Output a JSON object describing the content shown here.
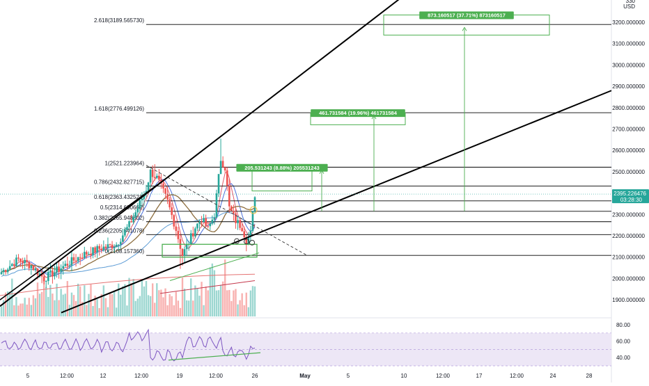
{
  "chart_data": {
    "type": "candlestick",
    "price_axis": {
      "currency_label": "USD",
      "top_partial_label": "330",
      "ticks": [
        {
          "value": 3200,
          "label": "3200.000000"
        },
        {
          "value": 3100,
          "label": "3100.000000"
        },
        {
          "value": 3000,
          "label": "3000.000000"
        },
        {
          "value": 2900,
          "label": "2900.000000"
        },
        {
          "value": 2800,
          "label": "2800.000000"
        },
        {
          "value": 2700,
          "label": "2700.000000"
        },
        {
          "value": 2600,
          "label": "2600.000000"
        },
        {
          "value": 2500,
          "label": "2500.000000"
        },
        {
          "value": 2400,
          "label": "2400.000000"
        },
        {
          "value": 2300,
          "label": "2300.000000"
        },
        {
          "value": 2200,
          "label": "2200.000000"
        },
        {
          "value": 2100,
          "label": "2100.000000"
        },
        {
          "value": 2000,
          "label": "2000.000000"
        },
        {
          "value": 1900,
          "label": "1900.000000"
        }
      ],
      "current_price": {
        "value": 2395.226476,
        "label": "2395.226476",
        "countdown": "03:28:30",
        "color": "#26a69a"
      }
    },
    "time_axis": {
      "ticks": [
        {
          "label": "5",
          "bold": false
        },
        {
          "label": "12:00",
          "bold": false
        },
        {
          "label": "12",
          "bold": false
        },
        {
          "label": "12:00",
          "bold": false
        },
        {
          "label": "19",
          "bold": false
        },
        {
          "label": "12:00",
          "bold": false
        },
        {
          "label": "26",
          "bold": false
        },
        {
          "label": "May",
          "bold": true
        },
        {
          "label": "5",
          "bold": false
        },
        {
          "label": "10",
          "bold": false
        },
        {
          "label": "12:00",
          "bold": false
        },
        {
          "label": "17",
          "bold": false
        },
        {
          "label": "12:00",
          "bold": false
        },
        {
          "label": "24",
          "bold": false
        },
        {
          "label": "28",
          "bold": false
        }
      ]
    },
    "fibonacci": {
      "anchor_low": 2108.15736,
      "anchor_high": 2521.223964,
      "levels": [
        {
          "ratio": 2.618,
          "price": 3189.56573,
          "label": "2.618(3189.565730)"
        },
        {
          "ratio": 1.618,
          "price": 2776.499126,
          "label": "1.618(2776.499126)"
        },
        {
          "ratio": 1,
          "price": 2521.223964,
          "label": "1(2521.223964)"
        },
        {
          "ratio": 0.786,
          "price": 2432.827715,
          "label": "0.786(2432.827715)"
        },
        {
          "ratio": 0.618,
          "price": 2363.432521,
          "label": "0.618(2363.432521)"
        },
        {
          "ratio": 0.5,
          "price": 2314.690662,
          "label": "0.5(2314.690662)"
        },
        {
          "ratio": 0.382,
          "price": 2265.948802,
          "label": "0.382(2265.948802)"
        },
        {
          "ratio": 0.236,
          "price": 2205.641078,
          "label": "0.236(2205.641078)"
        },
        {
          "ratio": 0,
          "price": 2108.15736,
          "label": "0(2108.157360)"
        }
      ]
    },
    "targets": [
      {
        "label": "205.531243 (8.88%) 205531243",
        "from": 2315,
        "to": 2520
      },
      {
        "label": "461.731584 (19.96%) 461731584",
        "from": 2315,
        "to": 2776
      },
      {
        "label": "873.160517 (37.71%) 873160517",
        "from": 2315,
        "to": 3189
      }
    ],
    "rsi": {
      "ticks": [
        {
          "value": 80,
          "label": "80.00"
        },
        {
          "value": 60,
          "label": "60.00"
        },
        {
          "value": 40,
          "label": "40.00"
        }
      ],
      "band": [
        30,
        70
      ]
    },
    "colors": {
      "up": "#26a69a",
      "down": "#ef5350",
      "fib_line": "#000000",
      "target_box": "#4caf50",
      "rsi_line": "#7e57c2",
      "rsi_band": "#ede7f6",
      "ma_brown": "#8d6e3f",
      "ma_blue": "#5b9bd5",
      "ma_red": "#e57373"
    }
  }
}
